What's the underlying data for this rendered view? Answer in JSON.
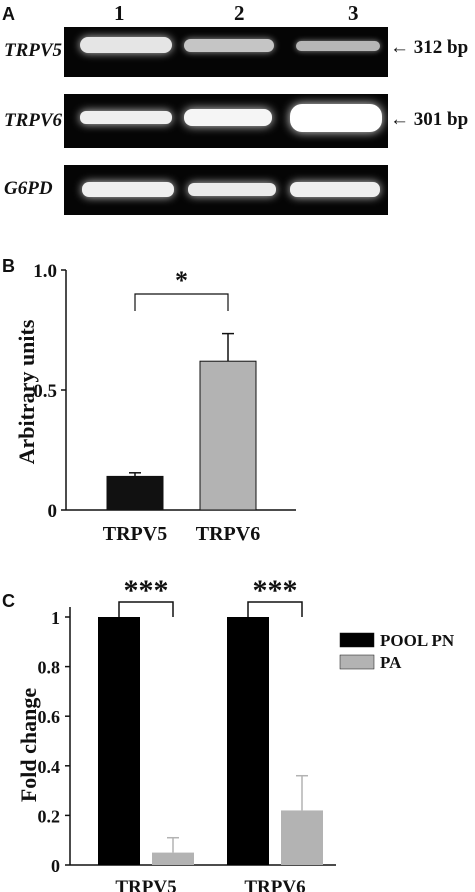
{
  "panel_a": {
    "letter": "A",
    "lanes": [
      "1",
      "2",
      "3"
    ],
    "genes": [
      {
        "name": "TRPV5",
        "size": "312 bp",
        "intensity": [
          0.75,
          0.45,
          0.3
        ]
      },
      {
        "name": "TRPV6",
        "size": "301 bp",
        "intensity": [
          0.85,
          0.9,
          1.0
        ]
      },
      {
        "name": "G6PD",
        "size": "",
        "intensity": [
          0.85,
          0.8,
          0.85
        ]
      }
    ]
  },
  "chart_data": [
    {
      "panel": "B",
      "type": "bar",
      "categories": [
        "TRPV5",
        "TRPV6"
      ],
      "values": [
        0.14,
        0.62
      ],
      "errors": [
        0.015,
        0.115
      ],
      "colors": [
        "#111111",
        "#b3b3b3"
      ],
      "ylabel": "Arbitrary units",
      "ylim": [
        0,
        1.0
      ],
      "yticks": [
        "0",
        "0.5",
        "1.0"
      ],
      "annotation": "*"
    },
    {
      "panel": "C",
      "type": "bar",
      "categories": [
        "TRPV5",
        "TRPV6"
      ],
      "series": [
        {
          "name": "POOL PN",
          "values": [
            1.0,
            1.0
          ],
          "errors": [
            0,
            0
          ],
          "color": "#000000"
        },
        {
          "name": "PA",
          "values": [
            0.05,
            0.22
          ],
          "errors": [
            0.06,
            0.14
          ],
          "color": "#b3b3b3"
        }
      ],
      "ylabel": "Fold change",
      "ylim": [
        0,
        1.0
      ],
      "yticks": [
        "0",
        "0.2",
        "0.4",
        "0.6",
        "0.8",
        "1"
      ],
      "annotations": [
        "***",
        "***"
      ],
      "legend_position": "right"
    }
  ]
}
